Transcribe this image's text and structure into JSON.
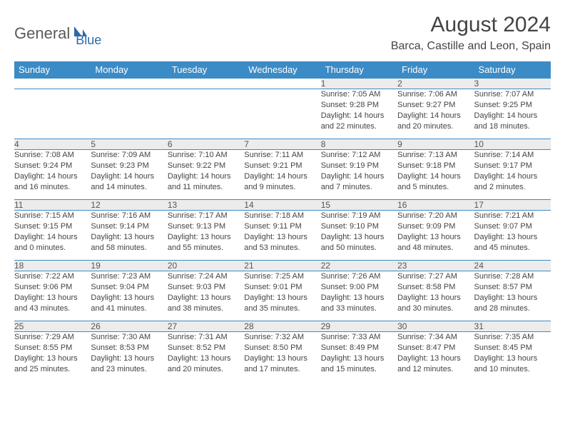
{
  "logo": {
    "part1": "General",
    "part2": "Blue"
  },
  "title": {
    "month": "August 2024",
    "location": "Barca, Castille and Leon, Spain"
  },
  "colors": {
    "header_bg": "#3b8bc6",
    "header_text": "#ffffff",
    "daynum_bg": "#ececec",
    "border": "#3b8bc6",
    "logo_gray": "#5a5a5a",
    "logo_blue": "#2d6aa8"
  },
  "weekdays": [
    "Sunday",
    "Monday",
    "Tuesday",
    "Wednesday",
    "Thursday",
    "Friday",
    "Saturday"
  ],
  "weeks": [
    {
      "nums": [
        "",
        "",
        "",
        "",
        "1",
        "2",
        "3"
      ],
      "cells": [
        {
          "sunrise": "",
          "sunset": "",
          "daylight1": "",
          "daylight2": ""
        },
        {
          "sunrise": "",
          "sunset": "",
          "daylight1": "",
          "daylight2": ""
        },
        {
          "sunrise": "",
          "sunset": "",
          "daylight1": "",
          "daylight2": ""
        },
        {
          "sunrise": "",
          "sunset": "",
          "daylight1": "",
          "daylight2": ""
        },
        {
          "sunrise": "Sunrise: 7:05 AM",
          "sunset": "Sunset: 9:28 PM",
          "daylight1": "Daylight: 14 hours",
          "daylight2": "and 22 minutes."
        },
        {
          "sunrise": "Sunrise: 7:06 AM",
          "sunset": "Sunset: 9:27 PM",
          "daylight1": "Daylight: 14 hours",
          "daylight2": "and 20 minutes."
        },
        {
          "sunrise": "Sunrise: 7:07 AM",
          "sunset": "Sunset: 9:25 PM",
          "daylight1": "Daylight: 14 hours",
          "daylight2": "and 18 minutes."
        }
      ]
    },
    {
      "nums": [
        "4",
        "5",
        "6",
        "7",
        "8",
        "9",
        "10"
      ],
      "cells": [
        {
          "sunrise": "Sunrise: 7:08 AM",
          "sunset": "Sunset: 9:24 PM",
          "daylight1": "Daylight: 14 hours",
          "daylight2": "and 16 minutes."
        },
        {
          "sunrise": "Sunrise: 7:09 AM",
          "sunset": "Sunset: 9:23 PM",
          "daylight1": "Daylight: 14 hours",
          "daylight2": "and 14 minutes."
        },
        {
          "sunrise": "Sunrise: 7:10 AM",
          "sunset": "Sunset: 9:22 PM",
          "daylight1": "Daylight: 14 hours",
          "daylight2": "and 11 minutes."
        },
        {
          "sunrise": "Sunrise: 7:11 AM",
          "sunset": "Sunset: 9:21 PM",
          "daylight1": "Daylight: 14 hours",
          "daylight2": "and 9 minutes."
        },
        {
          "sunrise": "Sunrise: 7:12 AM",
          "sunset": "Sunset: 9:19 PM",
          "daylight1": "Daylight: 14 hours",
          "daylight2": "and 7 minutes."
        },
        {
          "sunrise": "Sunrise: 7:13 AM",
          "sunset": "Sunset: 9:18 PM",
          "daylight1": "Daylight: 14 hours",
          "daylight2": "and 5 minutes."
        },
        {
          "sunrise": "Sunrise: 7:14 AM",
          "sunset": "Sunset: 9:17 PM",
          "daylight1": "Daylight: 14 hours",
          "daylight2": "and 2 minutes."
        }
      ]
    },
    {
      "nums": [
        "11",
        "12",
        "13",
        "14",
        "15",
        "16",
        "17"
      ],
      "cells": [
        {
          "sunrise": "Sunrise: 7:15 AM",
          "sunset": "Sunset: 9:15 PM",
          "daylight1": "Daylight: 14 hours",
          "daylight2": "and 0 minutes."
        },
        {
          "sunrise": "Sunrise: 7:16 AM",
          "sunset": "Sunset: 9:14 PM",
          "daylight1": "Daylight: 13 hours",
          "daylight2": "and 58 minutes."
        },
        {
          "sunrise": "Sunrise: 7:17 AM",
          "sunset": "Sunset: 9:13 PM",
          "daylight1": "Daylight: 13 hours",
          "daylight2": "and 55 minutes."
        },
        {
          "sunrise": "Sunrise: 7:18 AM",
          "sunset": "Sunset: 9:11 PM",
          "daylight1": "Daylight: 13 hours",
          "daylight2": "and 53 minutes."
        },
        {
          "sunrise": "Sunrise: 7:19 AM",
          "sunset": "Sunset: 9:10 PM",
          "daylight1": "Daylight: 13 hours",
          "daylight2": "and 50 minutes."
        },
        {
          "sunrise": "Sunrise: 7:20 AM",
          "sunset": "Sunset: 9:09 PM",
          "daylight1": "Daylight: 13 hours",
          "daylight2": "and 48 minutes."
        },
        {
          "sunrise": "Sunrise: 7:21 AM",
          "sunset": "Sunset: 9:07 PM",
          "daylight1": "Daylight: 13 hours",
          "daylight2": "and 45 minutes."
        }
      ]
    },
    {
      "nums": [
        "18",
        "19",
        "20",
        "21",
        "22",
        "23",
        "24"
      ],
      "cells": [
        {
          "sunrise": "Sunrise: 7:22 AM",
          "sunset": "Sunset: 9:06 PM",
          "daylight1": "Daylight: 13 hours",
          "daylight2": "and 43 minutes."
        },
        {
          "sunrise": "Sunrise: 7:23 AM",
          "sunset": "Sunset: 9:04 PM",
          "daylight1": "Daylight: 13 hours",
          "daylight2": "and 41 minutes."
        },
        {
          "sunrise": "Sunrise: 7:24 AM",
          "sunset": "Sunset: 9:03 PM",
          "daylight1": "Daylight: 13 hours",
          "daylight2": "and 38 minutes."
        },
        {
          "sunrise": "Sunrise: 7:25 AM",
          "sunset": "Sunset: 9:01 PM",
          "daylight1": "Daylight: 13 hours",
          "daylight2": "and 35 minutes."
        },
        {
          "sunrise": "Sunrise: 7:26 AM",
          "sunset": "Sunset: 9:00 PM",
          "daylight1": "Daylight: 13 hours",
          "daylight2": "and 33 minutes."
        },
        {
          "sunrise": "Sunrise: 7:27 AM",
          "sunset": "Sunset: 8:58 PM",
          "daylight1": "Daylight: 13 hours",
          "daylight2": "and 30 minutes."
        },
        {
          "sunrise": "Sunrise: 7:28 AM",
          "sunset": "Sunset: 8:57 PM",
          "daylight1": "Daylight: 13 hours",
          "daylight2": "and 28 minutes."
        }
      ]
    },
    {
      "nums": [
        "25",
        "26",
        "27",
        "28",
        "29",
        "30",
        "31"
      ],
      "cells": [
        {
          "sunrise": "Sunrise: 7:29 AM",
          "sunset": "Sunset: 8:55 PM",
          "daylight1": "Daylight: 13 hours",
          "daylight2": "and 25 minutes."
        },
        {
          "sunrise": "Sunrise: 7:30 AM",
          "sunset": "Sunset: 8:53 PM",
          "daylight1": "Daylight: 13 hours",
          "daylight2": "and 23 minutes."
        },
        {
          "sunrise": "Sunrise: 7:31 AM",
          "sunset": "Sunset: 8:52 PM",
          "daylight1": "Daylight: 13 hours",
          "daylight2": "and 20 minutes."
        },
        {
          "sunrise": "Sunrise: 7:32 AM",
          "sunset": "Sunset: 8:50 PM",
          "daylight1": "Daylight: 13 hours",
          "daylight2": "and 17 minutes."
        },
        {
          "sunrise": "Sunrise: 7:33 AM",
          "sunset": "Sunset: 8:49 PM",
          "daylight1": "Daylight: 13 hours",
          "daylight2": "and 15 minutes."
        },
        {
          "sunrise": "Sunrise: 7:34 AM",
          "sunset": "Sunset: 8:47 PM",
          "daylight1": "Daylight: 13 hours",
          "daylight2": "and 12 minutes."
        },
        {
          "sunrise": "Sunrise: 7:35 AM",
          "sunset": "Sunset: 8:45 PM",
          "daylight1": "Daylight: 13 hours",
          "daylight2": "and 10 minutes."
        }
      ]
    }
  ]
}
